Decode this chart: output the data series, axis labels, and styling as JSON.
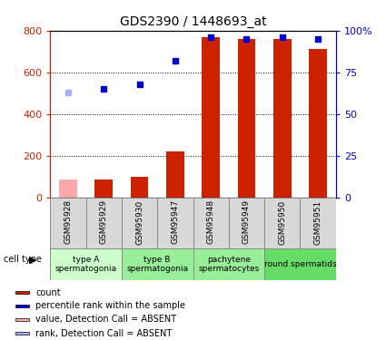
{
  "title": "GDS2390 / 1448693_at",
  "samples": [
    "GSM95928",
    "GSM95929",
    "GSM95930",
    "GSM95947",
    "GSM95948",
    "GSM95949",
    "GSM95950",
    "GSM95951"
  ],
  "counts": [
    85,
    85,
    100,
    220,
    770,
    760,
    760,
    710
  ],
  "percentiles": [
    63,
    65,
    68,
    82,
    96,
    95,
    96,
    95
  ],
  "absent_flags": [
    true,
    false,
    false,
    false,
    false,
    false,
    false,
    false
  ],
  "bar_colors": [
    "#ffaaaa",
    "#cc2200",
    "#cc2200",
    "#cc2200",
    "#cc2200",
    "#cc2200",
    "#cc2200",
    "#cc2200"
  ],
  "dot_colors": [
    "#aaaaff",
    "#0000cc",
    "#0000cc",
    "#0000cc",
    "#0000cc",
    "#0000cc",
    "#0000cc",
    "#0000cc"
  ],
  "ylim_left": [
    0,
    800
  ],
  "ylim_right": [
    0,
    100
  ],
  "yticks_left": [
    0,
    200,
    400,
    600,
    800
  ],
  "ytick_labels_right": [
    "0",
    "25",
    "50",
    "75",
    "100%"
  ],
  "cell_type_groups": [
    {
      "label": "type A\nspermatogonia",
      "start": 0,
      "end": 2,
      "color": "#ccffcc"
    },
    {
      "label": "type B\nspermatogonia",
      "start": 2,
      "end": 4,
      "color": "#99ee99"
    },
    {
      "label": "pachytene\nspermatocytes",
      "start": 4,
      "end": 6,
      "color": "#99ee99"
    },
    {
      "label": "round spermatids",
      "start": 6,
      "end": 8,
      "color": "#66dd66"
    }
  ],
  "legend_items": [
    {
      "color": "#cc2200",
      "label": "count",
      "absent": false
    },
    {
      "color": "#0000cc",
      "label": "percentile rank within the sample",
      "absent": false
    },
    {
      "color": "#ffaaaa",
      "label": "value, Detection Call = ABSENT",
      "absent": true
    },
    {
      "color": "#aaaaff",
      "label": "rank, Detection Call = ABSENT",
      "absent": true
    }
  ],
  "left_axis_color": "#cc2200",
  "right_axis_color": "#0000cc",
  "xtick_box_color": "#d8d8d8",
  "cell_type_label": "cell type"
}
